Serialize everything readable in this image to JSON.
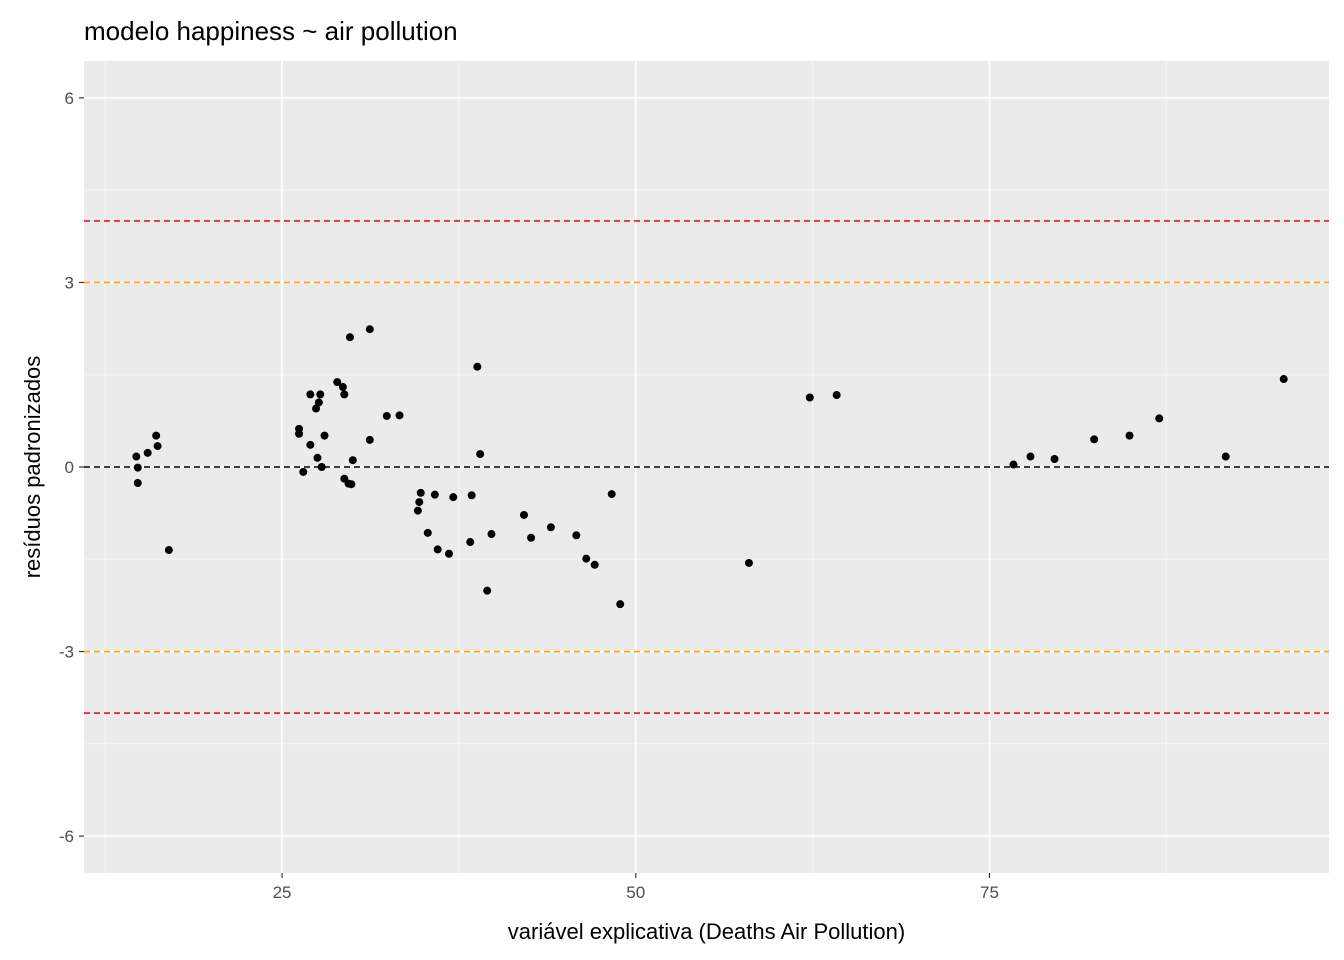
{
  "chart_data": {
    "type": "scatter",
    "title": "modelo happiness ~ air pollution",
    "xlabel": "variável explicativa (Deaths Air Pollution)",
    "ylabel": "resíduos padronizados",
    "xlim": [
      11,
      99
    ],
    "ylim": [
      -6.6,
      6.6
    ],
    "x_ticks": [
      25,
      50,
      75
    ],
    "x_tick_labels": [
      "25",
      "50",
      "75"
    ],
    "y_ticks": [
      -6,
      -3,
      0,
      3,
      6
    ],
    "y_tick_labels": [
      "-6",
      "-3",
      "0",
      "3",
      "6"
    ],
    "grid": true,
    "reference_lines": [
      {
        "y": 4,
        "color": "#e31a1c",
        "style": "dashed"
      },
      {
        "y": 3,
        "color": "#ffa500",
        "style": "dashed"
      },
      {
        "y": 0,
        "color": "#000000",
        "style": "dashed"
      },
      {
        "y": -3,
        "color": "#ffa500",
        "style": "dashed"
      },
      {
        "y": -4,
        "color": "#e31a1c",
        "style": "dashed"
      }
    ],
    "points": [
      [
        14.7,
        0.17
      ],
      [
        14.8,
        -0.01
      ],
      [
        14.8,
        -0.26
      ],
      [
        15.5,
        0.23
      ],
      [
        16.1,
        0.51
      ],
      [
        16.2,
        0.34
      ],
      [
        17.0,
        -1.35
      ],
      [
        26.2,
        0.54
      ],
      [
        26.2,
        0.62
      ],
      [
        26.5,
        -0.08
      ],
      [
        27.0,
        1.18
      ],
      [
        27.0,
        0.36
      ],
      [
        27.4,
        0.95
      ],
      [
        27.5,
        0.15
      ],
      [
        27.6,
        1.05
      ],
      [
        27.7,
        1.18
      ],
      [
        27.8,
        0.0
      ],
      [
        28.0,
        0.51
      ],
      [
        28.9,
        1.38
      ],
      [
        29.3,
        1.3
      ],
      [
        29.4,
        1.18
      ],
      [
        29.4,
        -0.19
      ],
      [
        29.7,
        -0.27
      ],
      [
        29.8,
        2.11
      ],
      [
        29.9,
        -0.28
      ],
      [
        30.0,
        0.11
      ],
      [
        31.2,
        2.24
      ],
      [
        31.2,
        0.44
      ],
      [
        32.4,
        0.83
      ],
      [
        33.3,
        0.84
      ],
      [
        34.6,
        -0.71
      ],
      [
        34.7,
        -0.57
      ],
      [
        34.8,
        -0.42
      ],
      [
        35.3,
        -1.07
      ],
      [
        35.8,
        -0.45
      ],
      [
        36.0,
        -1.34
      ],
      [
        36.8,
        -1.41
      ],
      [
        37.1,
        -0.49
      ],
      [
        38.3,
        -1.22
      ],
      [
        38.4,
        -0.46
      ],
      [
        38.8,
        1.63
      ],
      [
        39.0,
        0.21
      ],
      [
        39.5,
        -2.01
      ],
      [
        39.8,
        -1.09
      ],
      [
        42.1,
        -0.78
      ],
      [
        42.6,
        -1.15
      ],
      [
        44.0,
        -0.98
      ],
      [
        45.8,
        -1.11
      ],
      [
        46.5,
        -1.49
      ],
      [
        47.1,
        -1.59
      ],
      [
        48.3,
        -0.44
      ],
      [
        48.9,
        -2.23
      ],
      [
        58.0,
        -1.56
      ],
      [
        62.3,
        1.13
      ],
      [
        64.2,
        1.17
      ],
      [
        76.7,
        0.04
      ],
      [
        77.9,
        0.17
      ],
      [
        79.6,
        0.13
      ],
      [
        82.4,
        0.45
      ],
      [
        84.9,
        0.51
      ],
      [
        87.0,
        0.79
      ],
      [
        91.7,
        0.17
      ],
      [
        95.8,
        1.43
      ]
    ]
  }
}
